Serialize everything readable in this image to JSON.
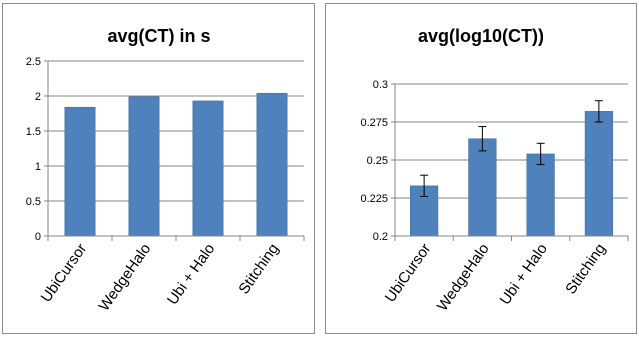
{
  "colors": {
    "bar": "#4f81bd",
    "bar_edge": "#3c6996",
    "axis": "#868686",
    "gridline": "#868686",
    "error_bar": "#000000"
  },
  "chart_data": [
    {
      "type": "bar",
      "title": "avg(CT) in s",
      "categories": [
        "UbiCursor",
        "WedgeHalo",
        "Ubi + Halo",
        "Stitching"
      ],
      "values": [
        1.84,
        1.99,
        1.93,
        2.04
      ],
      "ylim": [
        0,
        2.5
      ],
      "yticks": [
        0,
        0.5,
        1,
        1.5,
        2,
        2.5
      ],
      "ytick_labels": [
        "0",
        "0.5",
        "1",
        "1.5",
        "2",
        "2.5"
      ],
      "grid": true,
      "legend": false,
      "error_bars": null
    },
    {
      "type": "bar",
      "title": "avg(log10(CT))",
      "categories": [
        "UbiCursor",
        "WedgeHalo",
        "Ubi + Halo",
        "Stitching"
      ],
      "values": [
        0.233,
        0.264,
        0.254,
        0.282
      ],
      "ylim": [
        0.2,
        0.3
      ],
      "yticks": [
        0.2,
        0.225,
        0.25,
        0.275,
        0.3
      ],
      "ytick_labels": [
        "0.2",
        "0.225",
        "0.25",
        "0.275",
        "0.3"
      ],
      "grid": true,
      "legend": false,
      "error_bars": [
        0.007,
        0.008,
        0.007,
        0.007
      ]
    }
  ]
}
